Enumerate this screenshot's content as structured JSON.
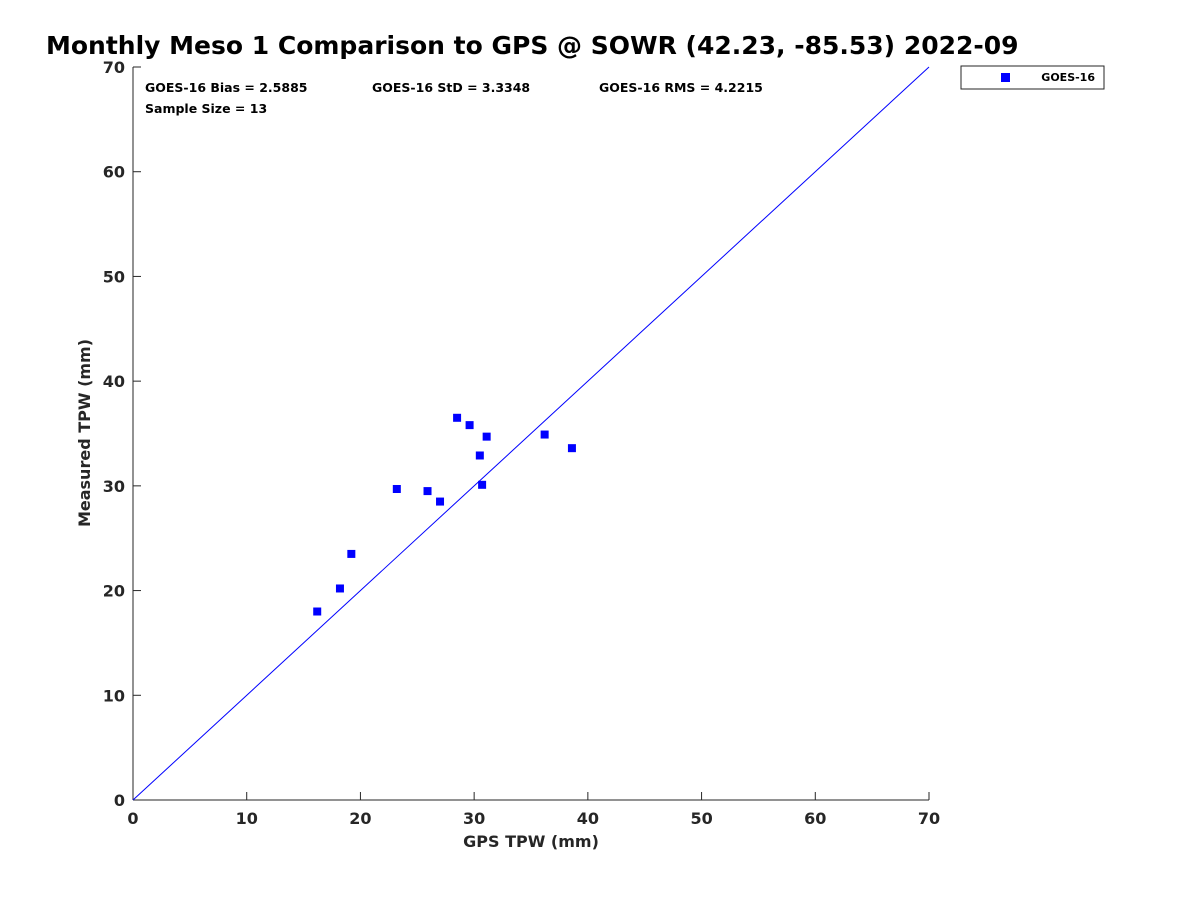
{
  "chart_data": {
    "type": "scatter",
    "title": "Monthly Meso 1 Comparison to GPS @ SOWR (42.23, -85.53) 2022-09",
    "xlabel": "GPS TPW (mm)",
    "ylabel": "Measured TPW (mm)",
    "xlim": [
      0,
      70
    ],
    "ylim": [
      0,
      70
    ],
    "xticks": [
      "0",
      "10",
      "20",
      "30",
      "40",
      "50",
      "60",
      "70"
    ],
    "yticks": [
      "0",
      "10",
      "20",
      "30",
      "40",
      "50",
      "60",
      "70"
    ],
    "grid": false,
    "legend_position": "outside-top-right",
    "reference_line": {
      "x": [
        0,
        70
      ],
      "y": [
        0,
        70
      ],
      "color": "#0000ff"
    },
    "series": [
      {
        "name": "GOES-16",
        "color": "#0000ff",
        "marker": "square",
        "x": [
          16.2,
          18.2,
          19.2,
          23.2,
          25.9,
          27.0,
          28.5,
          29.6,
          30.5,
          30.7,
          31.1,
          36.2,
          38.6
        ],
        "y": [
          18.0,
          20.2,
          23.5,
          29.7,
          29.5,
          28.5,
          36.5,
          35.8,
          32.9,
          30.1,
          34.7,
          34.9,
          33.6
        ]
      }
    ],
    "annotations": [
      "GOES-16 Bias = 2.5885",
      "GOES-16 StD = 3.3348",
      "GOES-16 RMS = 4.2215",
      "Sample Size = 13"
    ]
  }
}
